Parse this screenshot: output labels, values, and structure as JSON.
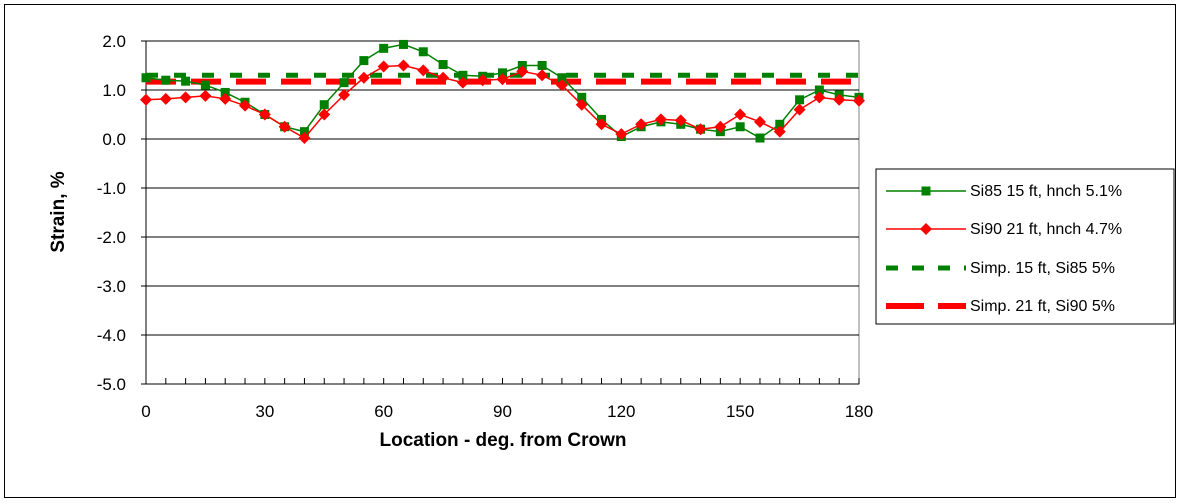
{
  "chart_data": {
    "type": "line",
    "title": "",
    "xlabel": "Location - deg. from Crown",
    "ylabel": "Strain, %",
    "xlim": [
      0,
      180
    ],
    "ylim": [
      -5,
      2
    ],
    "x_ticks": [
      "0",
      "30",
      "60",
      "90",
      "120",
      "150",
      "180"
    ],
    "y_ticks": [
      "2.0",
      "1.0",
      "0.0",
      "-1.0",
      "-2.0",
      "-3.0",
      "-4.0",
      "-5.0"
    ],
    "x_tick_values": [
      0,
      30,
      60,
      90,
      120,
      150,
      180
    ],
    "y_tick_values": [
      2,
      1,
      0,
      -1,
      -2,
      -3,
      -4,
      -5
    ],
    "grid": "horizontal",
    "legend_position": "right",
    "x": [
      0,
      5,
      10,
      15,
      20,
      25,
      30,
      35,
      40,
      45,
      50,
      55,
      60,
      65,
      70,
      75,
      80,
      85,
      90,
      95,
      100,
      105,
      110,
      115,
      120,
      125,
      130,
      135,
      140,
      145,
      150,
      155,
      160,
      165,
      170,
      175,
      180
    ],
    "series": [
      {
        "name": "Si85 15 ft, hnch 5.1%",
        "color": "#008000",
        "marker": "square",
        "dash": "solid",
        "values": [
          1.25,
          1.2,
          1.18,
          1.1,
          0.95,
          0.75,
          0.5,
          0.25,
          0.15,
          0.7,
          1.15,
          1.6,
          1.85,
          1.93,
          1.78,
          1.52,
          1.3,
          1.28,
          1.35,
          1.5,
          1.5,
          1.25,
          0.85,
          0.4,
          0.05,
          0.25,
          0.35,
          0.3,
          0.2,
          0.15,
          0.25,
          0.02,
          0.3,
          0.8,
          1.0,
          0.9,
          0.85
        ]
      },
      {
        "name": "Si90 21 ft, hnch 4.7%",
        "color": "#ff0000",
        "marker": "diamond",
        "dash": "solid",
        "values": [
          0.8,
          0.82,
          0.85,
          0.88,
          0.82,
          0.68,
          0.5,
          0.25,
          0.02,
          0.5,
          0.9,
          1.25,
          1.48,
          1.5,
          1.4,
          1.25,
          1.15,
          1.2,
          1.22,
          1.38,
          1.3,
          1.1,
          0.7,
          0.3,
          0.1,
          0.3,
          0.4,
          0.38,
          0.2,
          0.25,
          0.5,
          0.35,
          0.15,
          0.6,
          0.85,
          0.8,
          0.78
        ]
      },
      {
        "name": "Simp. 15 ft, Si85 5%",
        "color": "#008000",
        "marker": "none",
        "dash": "dashed",
        "values": [
          1.3,
          1.3,
          1.3,
          1.3,
          1.3,
          1.3,
          1.3,
          1.3,
          1.3,
          1.3,
          1.3,
          1.3,
          1.3,
          1.3,
          1.3,
          1.3,
          1.3,
          1.3,
          1.3,
          1.3,
          1.3,
          1.3,
          1.3,
          1.3,
          1.3,
          1.3,
          1.3,
          1.3,
          1.3,
          1.3,
          1.3,
          1.3,
          1.3,
          1.3,
          1.3,
          1.3,
          1.3
        ]
      },
      {
        "name": "Simp. 21 ft, Si90 5%",
        "color": "#ff0000",
        "marker": "none",
        "dash": "long-dash",
        "values": [
          1.17,
          1.17,
          1.17,
          1.17,
          1.17,
          1.17,
          1.17,
          1.17,
          1.17,
          1.17,
          1.17,
          1.17,
          1.17,
          1.17,
          1.17,
          1.17,
          1.17,
          1.17,
          1.17,
          1.17,
          1.17,
          1.17,
          1.17,
          1.17,
          1.17,
          1.17,
          1.17,
          1.17,
          1.17,
          1.17,
          1.17,
          1.17,
          1.17,
          1.17,
          1.17,
          1.17,
          1.17
        ]
      }
    ]
  }
}
